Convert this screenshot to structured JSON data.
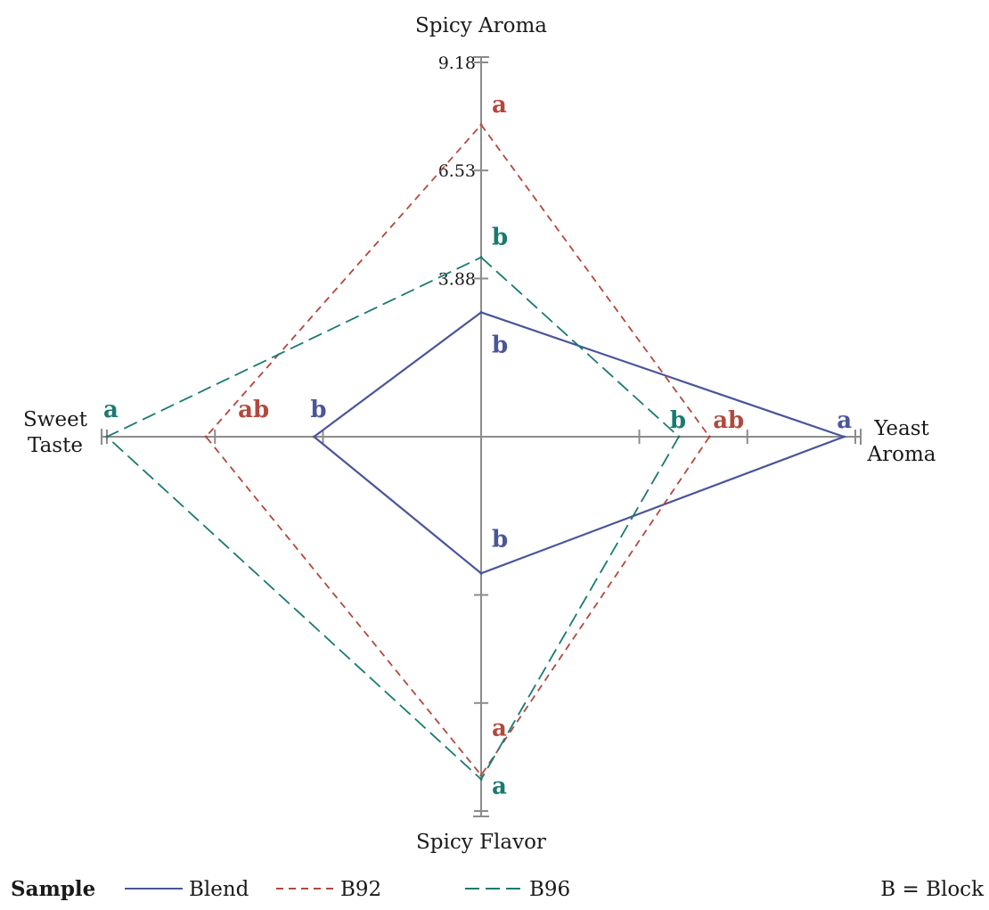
{
  "chart_data": {
    "type": "radar",
    "axes": [
      {
        "key": "spicy_aroma",
        "label_lines": [
          "Spicy Aroma"
        ]
      },
      {
        "key": "yeast_aroma",
        "label_lines": [
          "Yeast",
          "Aroma"
        ]
      },
      {
        "key": "spicy_flavor",
        "label_lines": [
          "Spicy Flavor"
        ]
      },
      {
        "key": "sweet_taste",
        "label_lines": [
          "Sweet",
          "Taste"
        ]
      }
    ],
    "range": [
      0,
      9.18
    ],
    "tick_labels": [
      "3.88",
      "6.53",
      "9.18"
    ],
    "tick_values": [
      3.88,
      6.53,
      9.18
    ],
    "series": [
      {
        "name": "Blend",
        "color": "#4a559a",
        "dash": "solid",
        "values": {
          "spicy_aroma": 3.05,
          "yeast_aroma": 8.9,
          "spicy_flavor": 3.35,
          "sweet_taste": 4.1
        },
        "letters": {
          "spicy_aroma": "b",
          "yeast_aroma": "a",
          "spicy_flavor": "b",
          "sweet_taste": "b"
        }
      },
      {
        "name": "B92",
        "color": "#b3483d",
        "dash": "short",
        "values": {
          "spicy_aroma": 7.65,
          "yeast_aroma": 5.6,
          "spicy_flavor": 8.3,
          "sweet_taste": 6.75
        },
        "letters": {
          "spicy_aroma": "a",
          "yeast_aroma": "ab",
          "spicy_flavor": "a",
          "sweet_taste": "ab"
        }
      },
      {
        "name": "B96",
        "color": "#1a7a70",
        "dash": "long",
        "values": {
          "spicy_aroma": 4.4,
          "yeast_aroma": 4.85,
          "spicy_flavor": 8.4,
          "sweet_taste": 9.18
        },
        "letters": {
          "spicy_aroma": "b",
          "yeast_aroma": "b",
          "spicy_flavor": "a",
          "sweet_taste": "a"
        }
      }
    ],
    "legend": {
      "title": "Sample",
      "note": "B = Block",
      "placement": "bottom"
    }
  }
}
